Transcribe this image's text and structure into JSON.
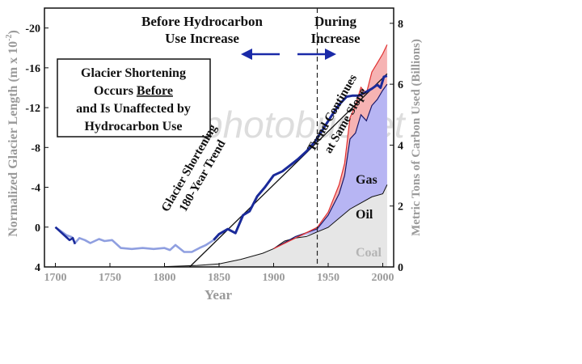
{
  "chart_data": {
    "type": "line",
    "x_axis": {
      "label": "Year",
      "ticks": [
        1700,
        1750,
        1800,
        1850,
        1900,
        1950,
        2000
      ],
      "range": [
        1690,
        2010
      ]
    },
    "y_left": {
      "label_main": "Normalized Glacier Length (m x 10",
      "label_exp": "-2",
      "label_close": ")",
      "tick_labels": [
        "-20",
        "-16",
        "-12",
        "-8",
        "-4",
        "0",
        "4"
      ],
      "ticks": [
        -20,
        -16,
        -12,
        -8,
        -4,
        0,
        4
      ],
      "range": [
        -22,
        4
      ],
      "inverted": true
    },
    "y_right": {
      "label": "Metric Tons of Carbon Used (Billions)",
      "ticks": [
        0,
        2,
        4,
        6,
        8
      ],
      "range": [
        0,
        8.5
      ]
    },
    "series": {
      "glacier_before": {
        "color": "#8f9fe0",
        "x": [
          1700,
          1710,
          1715,
          1718,
          1722,
          1727,
          1732,
          1740,
          1745,
          1752,
          1760,
          1770,
          1780,
          1790,
          1800,
          1805,
          1810,
          1818,
          1825,
          1832,
          1838,
          1845
        ],
        "y": [
          0,
          0.8,
          1.0,
          1.6,
          1.1,
          1.3,
          1.6,
          1.2,
          1.4,
          1.3,
          2.1,
          2.2,
          2.1,
          2.2,
          2.1,
          2.3,
          1.8,
          2.5,
          2.5,
          2.1,
          1.8,
          1.3
        ]
      },
      "glacier_early": {
        "color": "#1a2a9a",
        "x": [
          1700,
          1706,
          1710,
          1713,
          1716,
          1718
        ],
        "y": [
          0,
          0.6,
          1.0,
          1.3,
          1.1,
          1.7
        ]
      },
      "glacier_during": {
        "color": "#1a2a9a",
        "x": [
          1845,
          1850,
          1858,
          1865,
          1872,
          1878,
          1885,
          1892,
          1900,
          1908,
          1915,
          1922,
          1930,
          1938,
          1945,
          1952,
          1960,
          1967,
          1972,
          1978,
          1985,
          1990,
          1995,
          1998,
          2001,
          2004
        ],
        "y": [
          1.3,
          0.7,
          0.2,
          0.6,
          -1.2,
          -1.6,
          -3.1,
          -4.0,
          -5.2,
          -5.6,
          -6.2,
          -6.8,
          -7.6,
          -8.6,
          -9.8,
          -11.0,
          -12.3,
          -13.1,
          -13.2,
          -13.2,
          -13.6,
          -13.9,
          -14.3,
          -14.0,
          -15.1,
          -15.2
        ]
      },
      "trend": {
        "name": "180-Year Trend",
        "color": "#111111",
        "x": [
          1823,
          2004
        ],
        "y": [
          4.0,
          -15.4
        ]
      },
      "coal": {
        "name": "Coal",
        "x": [
          1800,
          1830,
          1850,
          1870,
          1890,
          1900,
          1910,
          1920,
          1930,
          1940,
          1950,
          1960,
          1970,
          1980,
          1990,
          2000,
          2004
        ],
        "y": [
          0.01,
          0.05,
          0.1,
          0.25,
          0.45,
          0.6,
          0.85,
          0.95,
          1.0,
          1.15,
          1.3,
          1.6,
          1.9,
          2.1,
          2.3,
          2.4,
          2.7
        ]
      },
      "oil_cumulative": {
        "name": "Oil",
        "x": [
          1900,
          1920,
          1940,
          1950,
          1960,
          1965,
          1970,
          1975,
          1980,
          1985,
          1990,
          1995,
          2000,
          2004
        ],
        "y": [
          0.6,
          1.0,
          1.25,
          1.7,
          2.4,
          3.0,
          4.2,
          4.4,
          5.0,
          4.8,
          5.3,
          5.5,
          5.8,
          6.0
        ]
      },
      "gas_cumulative": {
        "name": "Gas",
        "x": [
          1900,
          1940,
          1950,
          1960,
          1965,
          1970,
          1975,
          1980,
          1985,
          1990,
          1995,
          2000,
          2004
        ],
        "y": [
          0.6,
          1.3,
          1.8,
          2.7,
          3.4,
          4.9,
          5.3,
          5.9,
          5.7,
          6.4,
          6.7,
          7.0,
          7.3
        ]
      }
    },
    "divider_year": 1940,
    "labels": {
      "before_line1": "Before Hydrocarbon",
      "before_line2": "Use Increase",
      "during_line1": "During",
      "during_line2": "Increase",
      "box_line1": "Glacier Shortening",
      "box_line2a": "Occurs ",
      "box_line2b": "Before",
      "box_line3": "and Is Unaffected by",
      "box_line4": "Hydrocarbon Use",
      "trend_line1": "Glacier Shortening",
      "trend_line2": "180-Year Trend",
      "continues_line1": "Trend Continues",
      "continues_line2": "at Same Slope",
      "gas": "Gas",
      "oil": "Oil",
      "coal": "Coal",
      "watermark": "photobucket"
    },
    "colors": {
      "gas_fill": "#f6b3b3",
      "gas_line": "#e03030",
      "oil_fill": "#b7b5f3",
      "oil_line": "#1a1a6a",
      "coal_fill": "#e6e6e6",
      "coal_line": "#111111",
      "arrow": "#1a2aa8",
      "text": "#111111",
      "axis_secondary": "#9a9a9a"
    }
  }
}
